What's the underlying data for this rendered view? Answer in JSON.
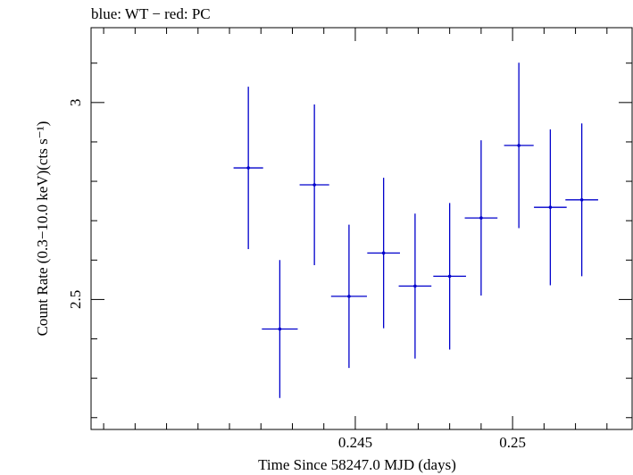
{
  "chart_data": {
    "type": "scatter",
    "title": "blue: WT − red: PC",
    "xlabel": "Time Since 58247.0 MJD (days)",
    "ylabel": "Count Rate (0.3−10.0 keV)(cts s⁻¹)",
    "xlim": [
      0.2366,
      0.2538
    ],
    "ylim": [
      2.17,
      3.19
    ],
    "x_ticks": [
      {
        "value": 0.245,
        "label": "0.245"
      },
      {
        "value": 0.25,
        "label": "0.25"
      }
    ],
    "y_ticks": [
      {
        "value": 2.5,
        "label": "2.5"
      },
      {
        "value": 3.0,
        "label": "3"
      }
    ],
    "x_minor_step": 0.001,
    "y_minor_step": 0.1,
    "series": [
      {
        "color": "#0000cc",
        "points": [
          {
            "x": 0.2416,
            "xerr": 0.00047,
            "y": 2.834,
            "yerr": 0.206
          },
          {
            "x": 0.2426,
            "xerr": 0.00057,
            "y": 2.425,
            "yerr": 0.175
          },
          {
            "x": 0.2437,
            "xerr": 0.00047,
            "y": 2.791,
            "yerr": 0.204
          },
          {
            "x": 0.2448,
            "xerr": 0.00057,
            "y": 2.508,
            "yerr": 0.182
          },
          {
            "x": 0.2459,
            "xerr": 0.00052,
            "y": 2.618,
            "yerr": 0.191
          },
          {
            "x": 0.2469,
            "xerr": 0.00052,
            "y": 2.534,
            "yerr": 0.184
          },
          {
            "x": 0.248,
            "xerr": 0.00052,
            "y": 2.559,
            "yerr": 0.186
          },
          {
            "x": 0.249,
            "xerr": 0.00052,
            "y": 2.707,
            "yerr": 0.197
          },
          {
            "x": 0.2502,
            "xerr": 0.00047,
            "y": 2.891,
            "yerr": 0.21
          },
          {
            "x": 0.2512,
            "xerr": 0.00052,
            "y": 2.734,
            "yerr": 0.198
          },
          {
            "x": 0.2522,
            "xerr": 0.00052,
            "y": 2.753,
            "yerr": 0.194
          }
        ]
      }
    ]
  }
}
